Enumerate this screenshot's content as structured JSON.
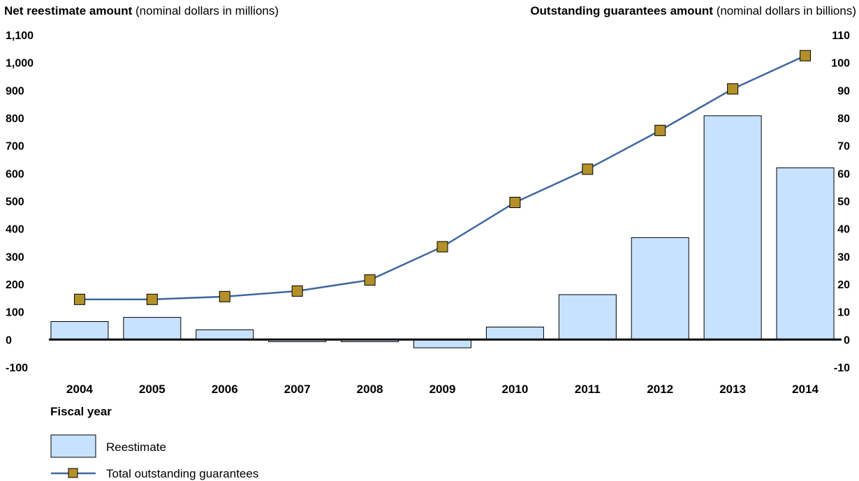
{
  "chart_data": {
    "type": "bar+line",
    "left_axis_title_bold": "Net reestimate amount",
    "left_axis_title_rest": " (nominal dollars in millions)",
    "right_axis_title_bold": "Outstanding guarantees amount",
    "right_axis_title_rest": " (nominal dollars in billions)",
    "xlabel": "Fiscal year",
    "categories": [
      "2004",
      "2005",
      "2006",
      "2007",
      "2008",
      "2009",
      "2010",
      "2011",
      "2012",
      "2013",
      "2014"
    ],
    "left_ylim": [
      -100,
      1100
    ],
    "left_ticks": [
      "1,100",
      "1,000",
      "900",
      "800",
      "700",
      "600",
      "500",
      "400",
      "300",
      "200",
      "100",
      "0",
      "-100"
    ],
    "right_ylim": [
      -10,
      110
    ],
    "right_ticks": [
      "110",
      "100",
      "90",
      "80",
      "70",
      "60",
      "50",
      "40",
      "30",
      "20",
      "10",
      "0",
      "-10"
    ],
    "series": [
      {
        "name": "Reestimate",
        "type": "bar",
        "axis": "left",
        "color": "#c6e2ff",
        "values": [
          65,
          80,
          35,
          -8,
          -8,
          -30,
          45,
          162,
          368,
          808,
          620
        ]
      },
      {
        "name": "Total outstanding guarantees",
        "type": "line",
        "axis": "right",
        "color": "#3f66a0",
        "marker_color": "#b3902a",
        "values": [
          14.5,
          14.5,
          15.5,
          17.5,
          21.5,
          33.5,
          49.5,
          61.5,
          75.5,
          90.5,
          102.5
        ]
      }
    ]
  }
}
